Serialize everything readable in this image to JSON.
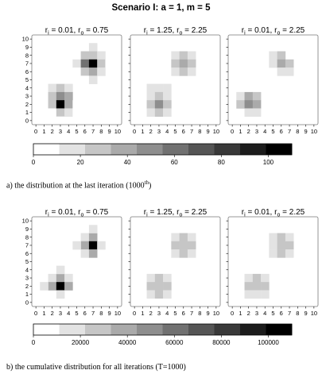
{
  "title": "Scenario I: a = 1, m = 5",
  "captions": {
    "top": "a) the distribution at the last iteration (1000",
    "top_sup": "th",
    "top_close": ")",
    "bottom": "b) the cumulative distribution for all iterations (T=1000)"
  },
  "chart_data": [
    {
      "type": "heatmap",
      "group": "a",
      "panels": [
        {
          "title": {
            "r": "r",
            "i_sub": "i",
            "ri": "= 0.01,",
            "o_sub": "o",
            "ro": "= 0.75"
          },
          "cells": [
            {
              "x": 1,
              "y": 8,
              "v": 5
            },
            {
              "x": 2,
              "y": 8,
              "v": 8
            },
            {
              "x": 2,
              "y": 7,
              "v": 10
            },
            {
              "x": 3,
              "y": 8,
              "v": 5
            },
            {
              "x": 5,
              "y": 8,
              "v": 10
            },
            {
              "x": 5,
              "y": 7,
              "v": 15
            },
            {
              "x": 5,
              "y": 6,
              "v": 5
            },
            {
              "x": 6,
              "y": 9,
              "v": 8
            },
            {
              "x": 6,
              "y": 8,
              "v": 25
            },
            {
              "x": 6,
              "y": 7,
              "v": 55
            },
            {
              "x": 6,
              "y": 6,
              "v": 25
            },
            {
              "x": 6,
              "y": 5,
              "v": 10
            },
            {
              "x": 7,
              "y": 9,
              "v": 15
            },
            {
              "x": 7,
              "y": 8,
              "v": 30
            },
            {
              "x": 7,
              "y": 7,
              "v": 105
            },
            {
              "x": 7,
              "y": 6,
              "v": 40
            },
            {
              "x": 7,
              "y": 5,
              "v": 15
            },
            {
              "x": 8,
              "y": 8,
              "v": 15
            },
            {
              "x": 8,
              "y": 7,
              "v": 30
            },
            {
              "x": 8,
              "y": 6,
              "v": 15
            },
            {
              "x": 9,
              "y": 7,
              "v": 5
            },
            {
              "x": 0,
              "y": 3,
              "v": 5
            },
            {
              "x": 1,
              "y": 3,
              "v": 8
            },
            {
              "x": 1,
              "y": 2,
              "v": 10
            },
            {
              "x": 2,
              "y": 4,
              "v": 15
            },
            {
              "x": 2,
              "y": 3,
              "v": 30
            },
            {
              "x": 2,
              "y": 2,
              "v": 25
            },
            {
              "x": 2,
              "y": 1,
              "v": 8
            },
            {
              "x": 3,
              "y": 4,
              "v": 25
            },
            {
              "x": 3,
              "y": 3,
              "v": 45
            },
            {
              "x": 3,
              "y": 2,
              "v": 110
            },
            {
              "x": 3,
              "y": 1,
              "v": 30
            },
            {
              "x": 3,
              "y": 0,
              "v": 5
            },
            {
              "x": 4,
              "y": 4,
              "v": 15
            },
            {
              "x": 4,
              "y": 3,
              "v": 35
            },
            {
              "x": 4,
              "y": 2,
              "v": 40
            },
            {
              "x": 4,
              "y": 1,
              "v": 15
            },
            {
              "x": 5,
              "y": 2,
              "v": 10
            },
            {
              "x": 5,
              "y": 1,
              "v": 8
            }
          ],
          "background": 10
        },
        {
          "title": {
            "r": "r",
            "i_sub": "i",
            "ri": "= 1.25,",
            "o_sub": "o",
            "ro": "= 2.25"
          },
          "cells": [
            {
              "x": 5,
              "y": 8,
              "v": 18
            },
            {
              "x": 5,
              "y": 7,
              "v": 25
            },
            {
              "x": 5,
              "y": 6,
              "v": 15
            },
            {
              "x": 6,
              "y": 8,
              "v": 25
            },
            {
              "x": 6,
              "y": 7,
              "v": 40
            },
            {
              "x": 6,
              "y": 6,
              "v": 25
            },
            {
              "x": 7,
              "y": 8,
              "v": 18
            },
            {
              "x": 7,
              "y": 7,
              "v": 25
            },
            {
              "x": 7,
              "y": 6,
              "v": 15
            },
            {
              "x": 2,
              "y": 4,
              "v": 15
            },
            {
              "x": 3,
              "y": 4,
              "v": 20
            },
            {
              "x": 4,
              "y": 4,
              "v": 15
            },
            {
              "x": 2,
              "y": 3,
              "v": 20
            },
            {
              "x": 3,
              "y": 3,
              "v": 25
            },
            {
              "x": 4,
              "y": 3,
              "v": 20
            },
            {
              "x": 2,
              "y": 2,
              "v": 25
            },
            {
              "x": 3,
              "y": 2,
              "v": 45
            },
            {
              "x": 4,
              "y": 2,
              "v": 25
            },
            {
              "x": 2,
              "y": 1,
              "v": 15
            },
            {
              "x": 3,
              "y": 1,
              "v": 25
            },
            {
              "x": 4,
              "y": 1,
              "v": 15
            }
          ],
          "background": 10
        },
        {
          "title": {
            "r": "r",
            "i_sub": "i",
            "ri": "= 0.01,",
            "o_sub": "o",
            "ro": "= 2.25"
          },
          "cells": [
            {
              "x": 5,
              "y": 8,
              "v": 15
            },
            {
              "x": 5,
              "y": 7,
              "v": 20
            },
            {
              "x": 6,
              "y": 8,
              "v": 25
            },
            {
              "x": 6,
              "y": 7,
              "v": 35
            },
            {
              "x": 6,
              "y": 6,
              "v": 20
            },
            {
              "x": 7,
              "y": 7,
              "v": 25
            },
            {
              "x": 7,
              "y": 6,
              "v": 15
            },
            {
              "x": 1,
              "y": 3,
              "v": 20
            },
            {
              "x": 1,
              "y": 2,
              "v": 25
            },
            {
              "x": 2,
              "y": 3,
              "v": 40
            },
            {
              "x": 2,
              "y": 2,
              "v": 45
            },
            {
              "x": 3,
              "y": 3,
              "v": 25
            },
            {
              "x": 3,
              "y": 2,
              "v": 35
            },
            {
              "x": 2,
              "y": 1,
              "v": 20
            },
            {
              "x": 3,
              "y": 1,
              "v": 15
            }
          ],
          "background": 10
        }
      ],
      "xlim": [
        0,
        10
      ],
      "ylim": [
        0,
        10
      ],
      "ticks": [
        "0",
        "1",
        "2",
        "3",
        "4",
        "5",
        "6",
        "7",
        "8",
        "9",
        "10"
      ],
      "colorbar": {
        "min": 0,
        "max": 110,
        "levels": 10,
        "tick_values": [
          20,
          40,
          60,
          80,
          100
        ],
        "labels": [
          "0",
          "20",
          "40",
          "60",
          "80",
          "100"
        ]
      }
    },
    {
      "type": "heatmap",
      "group": "b",
      "panels": [
        {
          "title": {
            "r": "r",
            "i_sub": "i",
            "ri": "= 0.01,",
            "o_sub": "o",
            "ro": "= 0.75"
          },
          "cells": [
            {
              "x": 6,
              "y": 8,
              "v": 20000
            },
            {
              "x": 6,
              "y": 7,
              "v": 40000
            },
            {
              "x": 6,
              "y": 6,
              "v": 20000
            },
            {
              "x": 7,
              "y": 8,
              "v": 40000
            },
            {
              "x": 7,
              "y": 7,
              "v": 110000
            },
            {
              "x": 7,
              "y": 6,
              "v": 40000
            },
            {
              "x": 8,
              "y": 7,
              "v": 20000
            },
            {
              "x": 5,
              "y": 7,
              "v": 15000
            },
            {
              "x": 7,
              "y": 9,
              "v": 12000
            },
            {
              "x": 2,
              "y": 3,
              "v": 20000
            },
            {
              "x": 3,
              "y": 3,
              "v": 40000
            },
            {
              "x": 4,
              "y": 3,
              "v": 20000
            },
            {
              "x": 2,
              "y": 2,
              "v": 40000
            },
            {
              "x": 3,
              "y": 2,
              "v": 110000
            },
            {
              "x": 4,
              "y": 2,
              "v": 40000
            },
            {
              "x": 3,
              "y": 1,
              "v": 20000
            },
            {
              "x": 3,
              "y": 4,
              "v": 15000
            },
            {
              "x": 1,
              "y": 2,
              "v": 12000
            }
          ],
          "background": 8000
        },
        {
          "title": {
            "r": "r",
            "i_sub": "i",
            "ri": "= 1.25,",
            "o_sub": "o",
            "ro": "= 2.25"
          },
          "cells": [
            {
              "x": 5,
              "y": 8,
              "v": 15000
            },
            {
              "x": 5,
              "y": 7,
              "v": 22000
            },
            {
              "x": 5,
              "y": 6,
              "v": 15000
            },
            {
              "x": 6,
              "y": 8,
              "v": 22000
            },
            {
              "x": 6,
              "y": 7,
              "v": 30000
            },
            {
              "x": 6,
              "y": 6,
              "v": 22000
            },
            {
              "x": 7,
              "y": 8,
              "v": 15000
            },
            {
              "x": 7,
              "y": 7,
              "v": 22000
            },
            {
              "x": 7,
              "y": 6,
              "v": 15000
            },
            {
              "x": 2,
              "y": 3,
              "v": 15000
            },
            {
              "x": 3,
              "y": 3,
              "v": 22000
            },
            {
              "x": 4,
              "y": 3,
              "v": 15000
            },
            {
              "x": 2,
              "y": 2,
              "v": 22000
            },
            {
              "x": 3,
              "y": 2,
              "v": 30000
            },
            {
              "x": 4,
              "y": 2,
              "v": 22000
            },
            {
              "x": 2,
              "y": 1,
              "v": 15000
            },
            {
              "x": 3,
              "y": 1,
              "v": 22000
            },
            {
              "x": 4,
              "y": 1,
              "v": 15000
            }
          ],
          "background": 10000
        },
        {
          "title": {
            "r": "r",
            "i_sub": "i",
            "ri": "= 0.01,",
            "o_sub": "o",
            "ro": "= 2.25"
          },
          "cells": [
            {
              "x": 5,
              "y": 8,
              "v": 15000
            },
            {
              "x": 5,
              "y": 7,
              "v": 20000
            },
            {
              "x": 5,
              "y": 6,
              "v": 15000
            },
            {
              "x": 6,
              "y": 8,
              "v": 22000
            },
            {
              "x": 6,
              "y": 7,
              "v": 32000
            },
            {
              "x": 6,
              "y": 6,
              "v": 22000
            },
            {
              "x": 7,
              "y": 8,
              "v": 15000
            },
            {
              "x": 7,
              "y": 7,
              "v": 22000
            },
            {
              "x": 7,
              "y": 6,
              "v": 15000
            },
            {
              "x": 2,
              "y": 3,
              "v": 15000
            },
            {
              "x": 3,
              "y": 3,
              "v": 22000
            },
            {
              "x": 4,
              "y": 3,
              "v": 15000
            },
            {
              "x": 2,
              "y": 2,
              "v": 22000
            },
            {
              "x": 3,
              "y": 2,
              "v": 32000
            },
            {
              "x": 4,
              "y": 2,
              "v": 22000
            },
            {
              "x": 2,
              "y": 1,
              "v": 15000
            },
            {
              "x": 3,
              "y": 1,
              "v": 20000
            },
            {
              "x": 4,
              "y": 1,
              "v": 15000
            }
          ],
          "background": 9000
        }
      ],
      "xlim": [
        0,
        10
      ],
      "ylim": [
        0,
        10
      ],
      "ticks": [
        "0",
        "1",
        "2",
        "3",
        "4",
        "5",
        "6",
        "7",
        "8",
        "9",
        "10"
      ],
      "colorbar": {
        "min": 0,
        "max": 110000,
        "levels": 10,
        "tick_values": [
          20000,
          40000,
          60000,
          80000,
          100000
        ],
        "labels": [
          "0",
          "20000",
          "40000",
          "60000",
          "80000",
          "100000"
        ]
      }
    }
  ]
}
